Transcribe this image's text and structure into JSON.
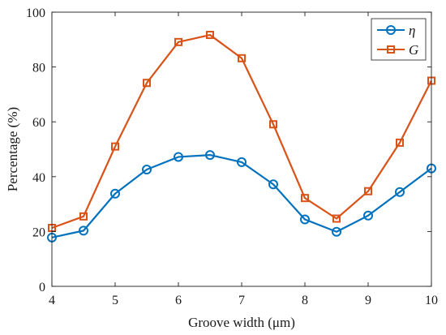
{
  "chart_data": {
    "type": "line",
    "x": [
      4,
      4.5,
      5,
      5.5,
      6,
      6.5,
      7,
      7.5,
      8,
      8.5,
      9,
      9.5,
      10
    ],
    "series": [
      {
        "name": "η",
        "color": "#0072BD",
        "marker": "circle",
        "values": [
          17.8,
          20.3,
          33.8,
          42.6,
          47.2,
          47.9,
          45.3,
          37.2,
          24.4,
          19.9,
          25.8,
          34.4,
          43.0
        ]
      },
      {
        "name": "G",
        "color": "#D95319",
        "marker": "square",
        "values": [
          21.3,
          25.5,
          51.0,
          74.2,
          89.1,
          91.7,
          83.2,
          59.1,
          32.2,
          24.7,
          34.7,
          52.4,
          75.0
        ]
      }
    ],
    "xlabel": "Groove width (μm)",
    "ylabel": "Percentage (%)",
    "xlim": [
      4,
      10
    ],
    "ylim": [
      0,
      100
    ],
    "xticks": [
      "4",
      "5",
      "6",
      "7",
      "8",
      "9",
      "10"
    ],
    "yticks": [
      "0",
      "20",
      "40",
      "60",
      "80",
      "100"
    ],
    "grid": false,
    "legend_position": "top-right"
  }
}
